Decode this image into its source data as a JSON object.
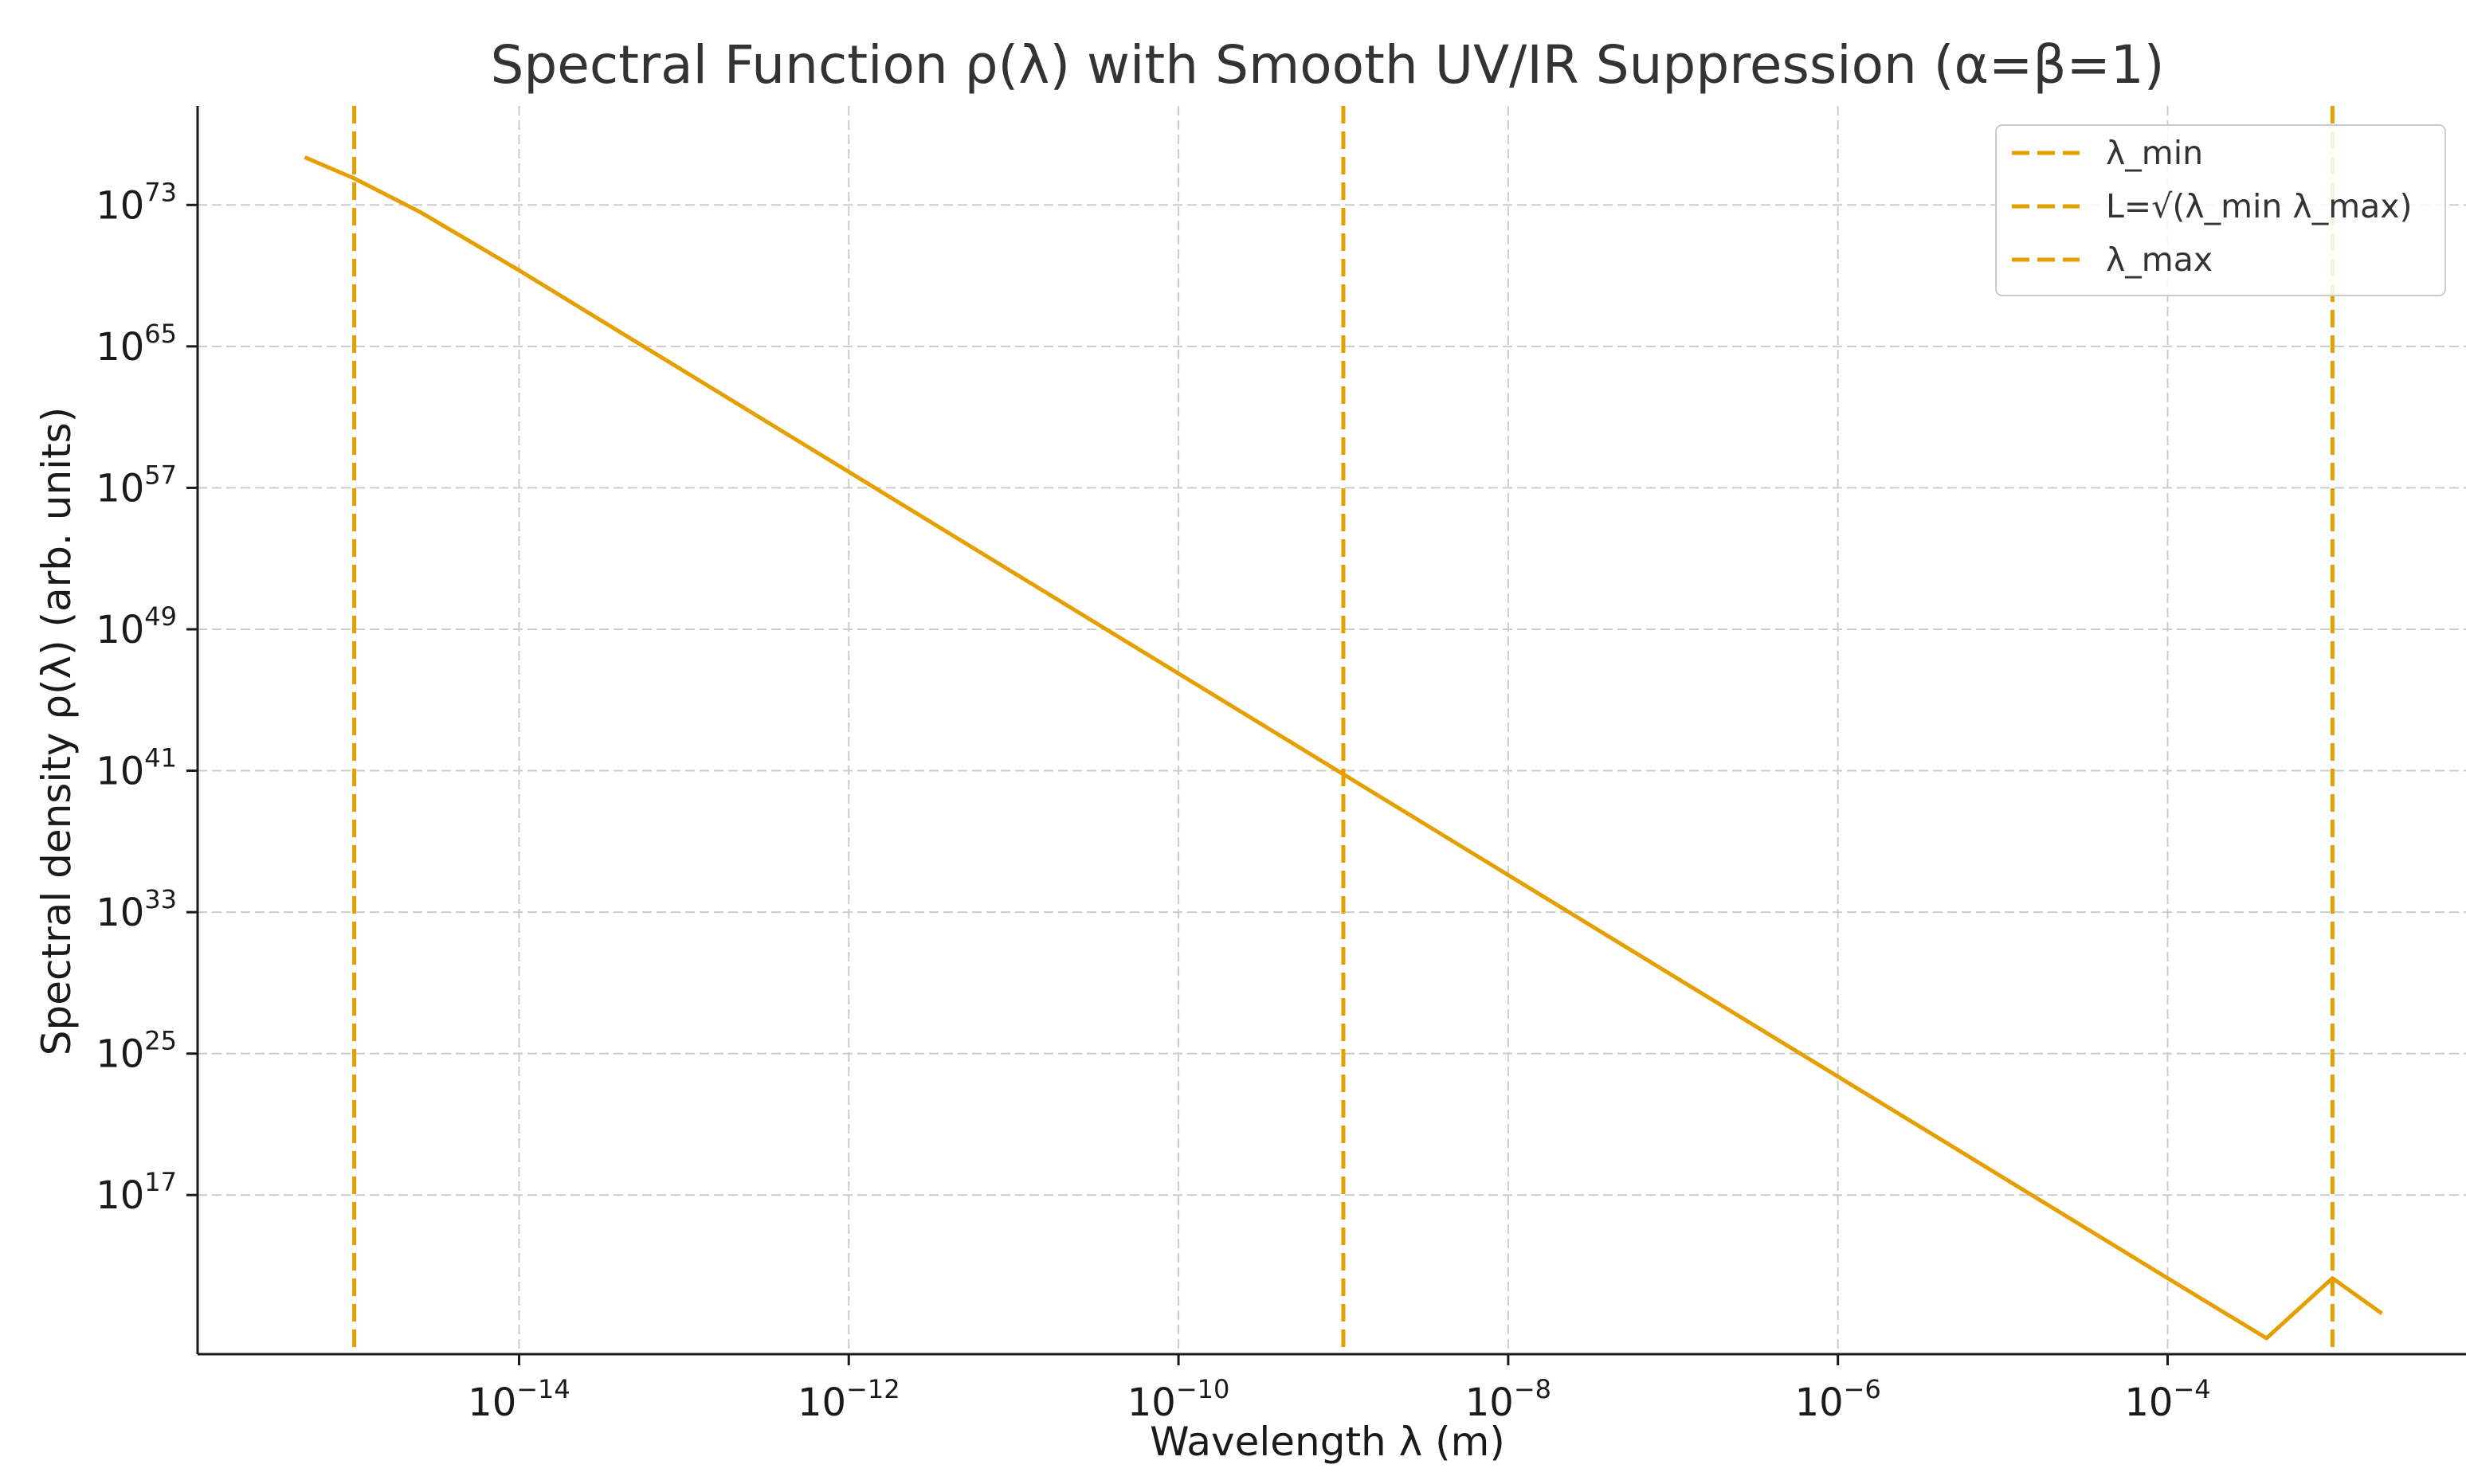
{
  "chart_data": {
    "type": "line",
    "title": "Spectral Function ρ(λ) with Smooth UV/IR Suppression (α=β=1)",
    "xlabel": "Wavelength λ (m)",
    "ylabel": "Spectral density ρ(λ) (arb. units)",
    "xscale": "log",
    "yscale": "log",
    "xlim_exp": [
      -15.95,
      -2.19
    ],
    "ylim_exp": [
      8.0,
      78.6
    ],
    "grid": true,
    "legend_placement": "top-right",
    "color": "#E69F00",
    "x_ticks": [
      {
        "base": "10",
        "exp": "−14",
        "value": -14
      },
      {
        "base": "10",
        "exp": "−12",
        "value": -12
      },
      {
        "base": "10",
        "exp": "−10",
        "value": -10
      },
      {
        "base": "10",
        "exp": "−8",
        "value": -8
      },
      {
        "base": "10",
        "exp": "−6",
        "value": -6
      },
      {
        "base": "10",
        "exp": "−4",
        "value": -4
      }
    ],
    "y_ticks": [
      {
        "base": "10",
        "exp": "17",
        "value": 17
      },
      {
        "base": "10",
        "exp": "25",
        "value": 25
      },
      {
        "base": "10",
        "exp": "33",
        "value": 33
      },
      {
        "base": "10",
        "exp": "41",
        "value": 41
      },
      {
        "base": "10",
        "exp": "49",
        "value": 49
      },
      {
        "base": "10",
        "exp": "57",
        "value": 57
      },
      {
        "base": "10",
        "exp": "65",
        "value": 65
      },
      {
        "base": "10",
        "exp": "73",
        "value": 73
      }
    ],
    "series": [
      {
        "name": "ρ(λ)",
        "x_log10": [
          -15.3,
          -15.0,
          -14.6,
          -14.0,
          -13.0,
          -12.0,
          -11.0,
          -10.0,
          -9.0,
          -8.0,
          -7.0,
          -6.0,
          -5.0,
          -4.0,
          -3.4,
          -3.0,
          -2.7
        ],
        "y_log10": [
          75.7,
          74.5,
          72.6,
          69.3,
          63.6,
          57.9,
          52.2,
          46.5,
          40.8,
          35.1,
          29.4,
          23.7,
          18.0,
          12.3,
          8.9,
          12.3,
          10.3
        ]
      }
    ],
    "vlines": [
      {
        "label": "λ_min",
        "x_log10": -15.0
      },
      {
        "label": "L=√(λ_min λ_max)",
        "x_log10": -9.0
      },
      {
        "label": "λ_max",
        "x_log10": -3.0
      }
    ]
  }
}
